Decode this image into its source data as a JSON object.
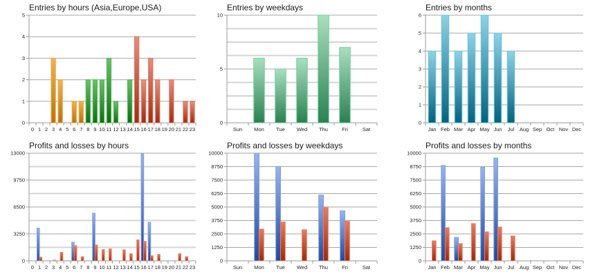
{
  "chart_data": [
    {
      "id": "entries-by-hours",
      "type": "bar",
      "title": "Entries by hours (Asia,Europe,USA)",
      "xlabel": "",
      "ylabel": "",
      "categories": [
        "0",
        "1",
        "2",
        "3",
        "4",
        "5",
        "6",
        "7",
        "8",
        "9",
        "10",
        "11",
        "12",
        "13",
        "14",
        "15",
        "16",
        "17",
        "18",
        "19",
        "20",
        "21",
        "22",
        "23"
      ],
      "values": [
        0,
        0,
        0,
        3,
        2,
        0,
        1,
        1,
        2,
        2,
        2,
        3,
        1,
        0,
        2,
        4,
        2,
        3,
        2,
        0,
        2,
        0,
        1,
        1
      ],
      "bar_groups": [
        "asia",
        "asia",
        "asia",
        "asia",
        "asia",
        "asia",
        "asia",
        "asia",
        "europe",
        "europe",
        "europe",
        "europe",
        "europe",
        "europe",
        "europe",
        "usa",
        "usa",
        "usa",
        "usa",
        "usa",
        "usa",
        "usa",
        "usa",
        "usa"
      ],
      "group_colors": {
        "asia": {
          "light": "#f0b454",
          "dark": "#b8720a",
          "edge": "#f2a43a"
        },
        "europe": {
          "light": "#6cbf6c",
          "dark": "#0e6e12",
          "edge": "#4fb84f"
        },
        "usa": {
          "light": "#e6907e",
          "dark": "#a02c14",
          "edge": "#e0705a"
        }
      },
      "ylim": [
        0,
        5
      ],
      "yticks": [
        0,
        1,
        2,
        3,
        4,
        5
      ],
      "ytick_labels": [
        "0",
        "1",
        "2",
        "3",
        "4",
        "5"
      ],
      "gridlines": [
        1,
        2,
        3,
        4,
        5
      ],
      "grid": true
    },
    {
      "id": "entries-by-weekdays",
      "type": "bar",
      "title": "Entries by weekdays",
      "xlabel": "",
      "ylabel": "",
      "categories": [
        "Sun",
        "Mon",
        "Tue",
        "Wed",
        "Thu",
        "Fri",
        "Sat"
      ],
      "values": [
        0,
        6,
        5,
        6,
        10,
        7,
        0
      ],
      "color": {
        "light": "#a9dfc0",
        "dark": "#2a8051",
        "edge": "#6fcf97"
      },
      "ylim": [
        0,
        10
      ],
      "yticks": [
        0,
        5,
        10
      ],
      "ytick_labels": [
        "0",
        "5",
        "10"
      ],
      "gridlines": [
        1.25,
        2.5,
        3.75,
        5,
        6.25,
        7.5,
        8.75,
        10
      ],
      "grid": true
    },
    {
      "id": "entries-by-months",
      "type": "bar",
      "title": "Entries by months",
      "xlabel": "",
      "ylabel": "",
      "categories": [
        "Jan",
        "Feb",
        "Mar",
        "Apr",
        "May",
        "Jun",
        "Jul",
        "Aug",
        "Sep",
        "Oct",
        "Nov",
        "Dec"
      ],
      "values": [
        4,
        6,
        4,
        5,
        6,
        5,
        4,
        0,
        0,
        0,
        0,
        0
      ],
      "color": {
        "light": "#8fd2e6",
        "dark": "#04627e",
        "edge": "#5ec4de"
      },
      "ylim": [
        0,
        6
      ],
      "yticks": [
        0,
        1,
        2,
        3,
        4,
        5,
        6
      ],
      "ytick_labels": [
        "0",
        "1",
        "2",
        "3",
        "4",
        "5",
        "6"
      ],
      "gridlines": [
        1,
        2,
        3,
        4,
        5,
        6
      ],
      "grid": true
    },
    {
      "id": "profits-losses-by-hours",
      "type": "bar",
      "title": "Profits and losses by hours",
      "xlabel": "",
      "ylabel": "",
      "categories": [
        "0",
        "1",
        "2",
        "3",
        "4",
        "5",
        "6",
        "7",
        "8",
        "9",
        "10",
        "11",
        "12",
        "13",
        "14",
        "15",
        "16",
        "17",
        "18",
        "19",
        "20",
        "21",
        "22",
        "23"
      ],
      "series": [
        {
          "name": "Profits",
          "values": [
            0,
            3950,
            0,
            0,
            0,
            0,
            2250,
            0,
            0,
            5750,
            0,
            0,
            0,
            0,
            0,
            0,
            13000,
            4640,
            0,
            0,
            0,
            0,
            0,
            0
          ],
          "color": {
            "light": "#9ab4ea",
            "dark": "#21489e",
            "edge": "#7e9ee0"
          }
        },
        {
          "name": "Losses",
          "values": [
            0,
            440,
            0,
            80,
            1030,
            0,
            1830,
            500,
            0,
            1910,
            1360,
            1440,
            0,
            1330,
            860,
            2530,
            2360,
            610,
            780,
            0,
            0,
            860,
            500,
            0
          ],
          "color": {
            "light": "#e07e66",
            "dark": "#9c2a0c",
            "edge": "#ec8066"
          }
        }
      ],
      "ylim": [
        0,
        13000
      ],
      "yticks": [
        0,
        3250,
        6500,
        9750,
        13000
      ],
      "ytick_labels": [
        "0",
        "3250",
        "6500",
        "9750",
        "13000"
      ],
      "gridlines": [
        1625,
        3250,
        4875,
        6500,
        8125,
        9750,
        11375,
        13000
      ],
      "grid": true
    },
    {
      "id": "profits-losses-by-weekdays",
      "type": "bar",
      "title": "Profits and losses by weekdays",
      "xlabel": "",
      "ylabel": "",
      "categories": [
        "Sun",
        "Mon",
        "Tue",
        "Wed",
        "Thu",
        "Fri",
        "Sat"
      ],
      "series": [
        {
          "name": "Profits",
          "values": [
            0,
            10000,
            8760,
            0,
            6110,
            4640,
            0
          ],
          "color": {
            "light": "#9ab4ea",
            "dark": "#21489e",
            "edge": "#7e9ee0"
          }
        },
        {
          "name": "Losses",
          "values": [
            0,
            2950,
            3610,
            2890,
            5000,
            3680,
            0
          ],
          "color": {
            "light": "#e07e66",
            "dark": "#9c2a0c",
            "edge": "#ec8066"
          }
        }
      ],
      "ylim": [
        0,
        10000
      ],
      "yticks": [
        0,
        1250,
        2500,
        3750,
        5000,
        6250,
        7500,
        8750,
        10000
      ],
      "ytick_labels": [
        "0",
        "1250",
        "2500",
        "3750",
        "5000",
        "6250",
        "7500",
        "8750",
        "10000"
      ],
      "gridlines": [
        1250,
        2500,
        3750,
        5000,
        6250,
        7500,
        8750,
        10000
      ],
      "grid": true
    },
    {
      "id": "profits-losses-by-months",
      "type": "bar",
      "title": "Profits and losses by months",
      "xlabel": "",
      "ylabel": "",
      "categories": [
        "Jan",
        "Feb",
        "Mar",
        "Apr",
        "May",
        "Jun",
        "Jul",
        "Aug",
        "Sep",
        "Oct",
        "Nov",
        "Dec"
      ],
      "series": [
        {
          "name": "Profits",
          "values": [
            0,
            8850,
            2180,
            0,
            8720,
            9550,
            0,
            0,
            0,
            0,
            0,
            0
          ],
          "color": {
            "light": "#9ab4ea",
            "dark": "#21489e",
            "edge": "#7e9ee0"
          }
        },
        {
          "name": "Losses",
          "values": [
            1860,
            3080,
            1600,
            3460,
            2690,
            3140,
            2310,
            0,
            0,
            0,
            0,
            0
          ],
          "color": {
            "light": "#e07e66",
            "dark": "#9c2a0c",
            "edge": "#ec8066"
          }
        }
      ],
      "ylim": [
        0,
        10000
      ],
      "yticks": [
        0,
        1250,
        2500,
        3750,
        5000,
        6250,
        7500,
        8750,
        10000
      ],
      "ytick_labels": [
        "0",
        "1250",
        "2500",
        "3750",
        "5000",
        "6250",
        "7500",
        "8750",
        "10000"
      ],
      "gridlines": [
        1250,
        2500,
        3750,
        5000,
        6250,
        7500,
        8750,
        10000
      ],
      "grid": true
    }
  ]
}
